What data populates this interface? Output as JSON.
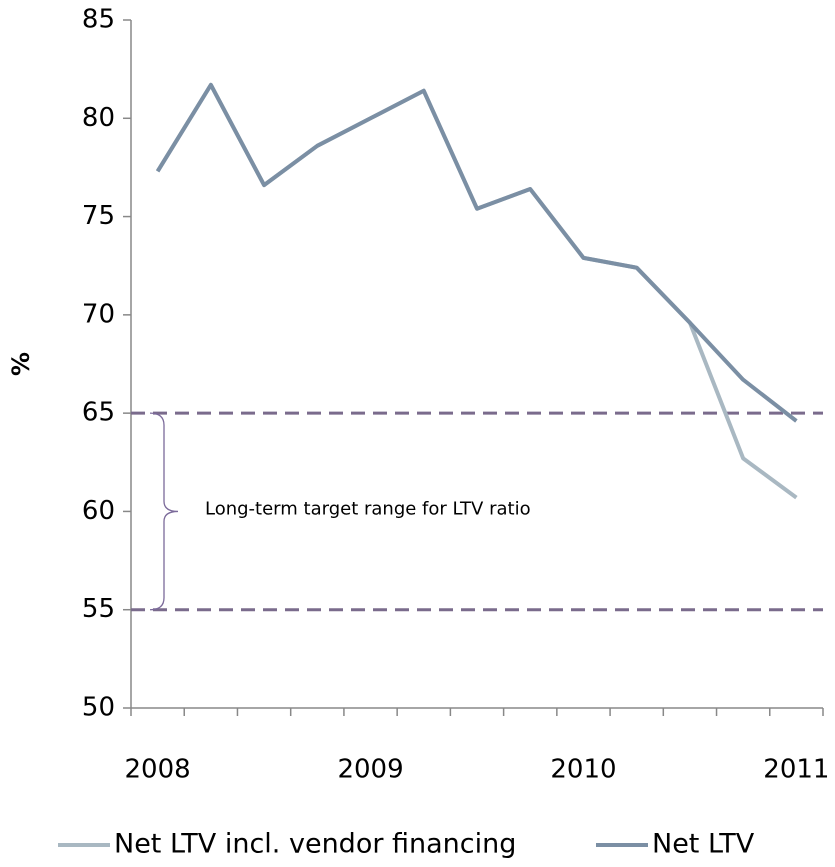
{
  "chart_data": {
    "type": "line",
    "ylabel": "%",
    "categories": [
      "2008",
      null,
      null,
      null,
      "2009",
      null,
      null,
      null,
      "2010",
      null,
      null,
      null,
      "2011"
    ],
    "series": [
      {
        "name": "Net LTV incl. vendor financing",
        "color": "#a9b8c2",
        "values": [
          77.3,
          81.7,
          76.6,
          78.6,
          80.0,
          81.4,
          75.4,
          76.4,
          72.9,
          72.4,
          69.6,
          62.7,
          60.7
        ]
      },
      {
        "name": "Net LTV",
        "color": "#7b8fa4",
        "values": [
          77.3,
          81.7,
          76.6,
          78.6,
          80.0,
          81.4,
          75.4,
          76.4,
          72.9,
          72.4,
          69.6,
          66.7,
          64.6
        ]
      }
    ],
    "ylim": [
      50,
      85
    ],
    "yticks": [
      50,
      55,
      60,
      65,
      70,
      75,
      80,
      85
    ],
    "hlines": [
      65,
      55
    ],
    "hline_color": "#7a6b8c",
    "annotation": "Long-term target range for LTV ratio",
    "legend": "bottom"
  }
}
